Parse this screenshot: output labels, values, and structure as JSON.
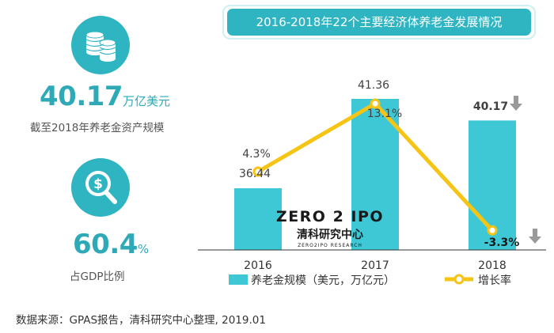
{
  "left_panel": {
    "asset": {
      "icon": "coin-stack-icon",
      "value": "40.17",
      "unit": "万亿美元",
      "caption": "截至2018年养老金资产规模"
    },
    "gdp": {
      "icon": "dollar-magnifier-icon",
      "value": "60.4",
      "unit": "%",
      "caption": "占GDP比例"
    }
  },
  "colors": {
    "accent": "#2fb4c2",
    "bar": "#3ec8d6",
    "line": "#f5c415",
    "arrow": "#9a9a9a"
  },
  "chart_data": {
    "type": "bar",
    "title": "2016-2018年22个主要经济体养老金发展情况",
    "categories": [
      "2016",
      "2017",
      "2018"
    ],
    "series": [
      {
        "name": "养老金规模（美元，万亿元）",
        "type": "bar",
        "values": [
          36.44,
          41.36,
          40.17
        ],
        "labels": [
          "36.44",
          "41.36",
          "40.17"
        ]
      },
      {
        "name": "增长率",
        "type": "line",
        "values": [
          4.3,
          13.1,
          -3.3
        ],
        "labels": [
          "4.3%",
          "13.1%",
          "-3.3%"
        ]
      }
    ],
    "legend_position": "bottom",
    "grid": false,
    "trend_arrow_category": "2018"
  },
  "watermark": {
    "brand": "ZERO 2 IPO",
    "name_cn": "清科研究中心",
    "name_en": "ZERO2IPO RESEARCH"
  },
  "source": "数据来源：GPAS报告，清科研究中心整理, 2019.01"
}
